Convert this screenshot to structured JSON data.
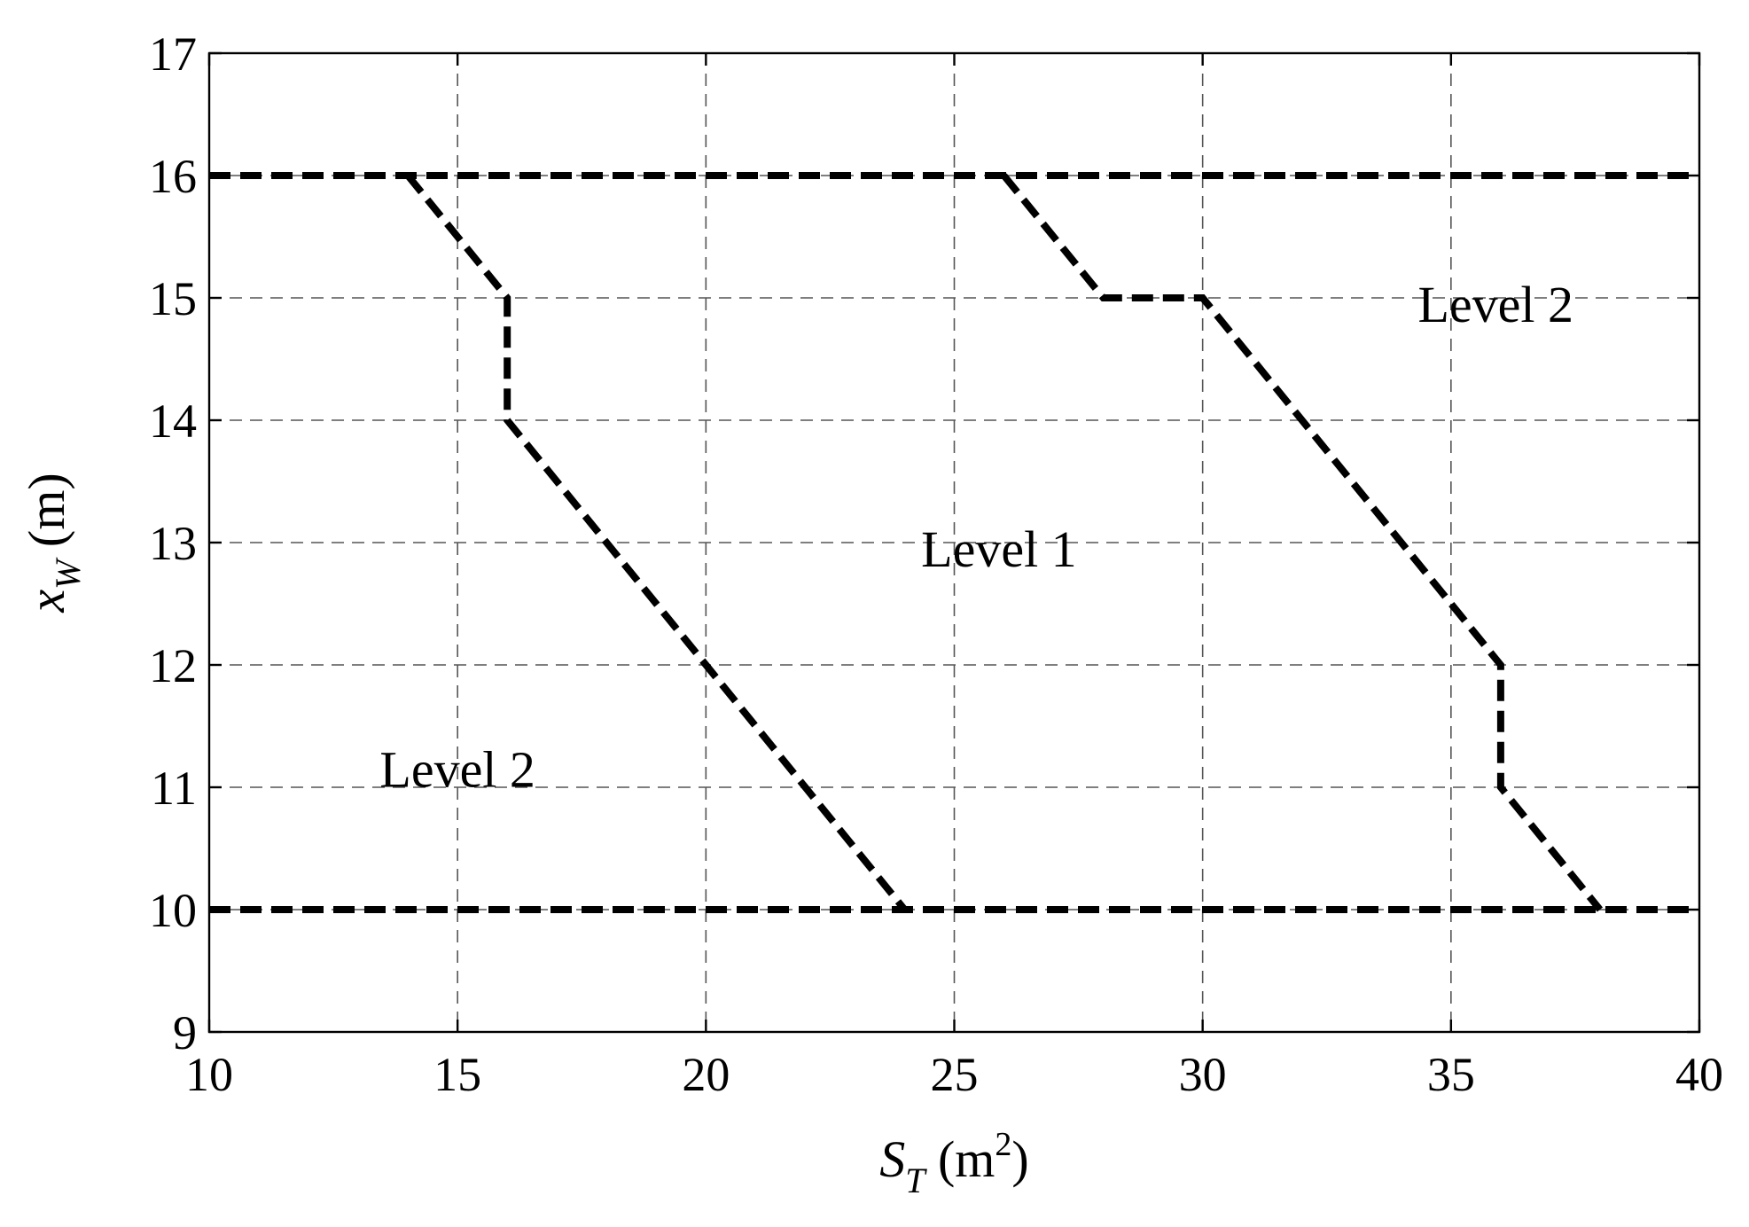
{
  "chart_data": {
    "type": "line",
    "xlabel": {
      "main": "S",
      "sub": "T",
      "unit_open": " (m",
      "unit_sup": "2",
      "unit_close": ")"
    },
    "ylabel": {
      "main": "x",
      "sub": "W",
      "unit": " (m)"
    },
    "xlim": [
      10,
      40
    ],
    "ylim": [
      9,
      17
    ],
    "xticks": [
      10,
      15,
      20,
      25,
      30,
      35,
      40
    ],
    "yticks": [
      9,
      10,
      11,
      12,
      13,
      14,
      15,
      16,
      17
    ],
    "grid": true,
    "series": [
      {
        "x": [
          10,
          40
        ],
        "y": [
          16,
          16
        ]
      },
      {
        "x": [
          10,
          40
        ],
        "y": [
          10,
          10
        ]
      },
      {
        "x": [
          14,
          16,
          16,
          24
        ],
        "y": [
          16,
          15,
          14,
          10
        ]
      },
      {
        "x": [
          26,
          28,
          30,
          36,
          36,
          38
        ],
        "y": [
          16,
          15,
          15,
          12,
          11,
          10
        ]
      }
    ],
    "annotations": [
      {
        "text": "Level 1",
        "x": 25.9,
        "y": 12.95
      },
      {
        "text": "Level 2",
        "x": 35.9,
        "y": 14.95
      },
      {
        "text": "Level 2",
        "x": 15.0,
        "y": 11.15
      }
    ]
  }
}
